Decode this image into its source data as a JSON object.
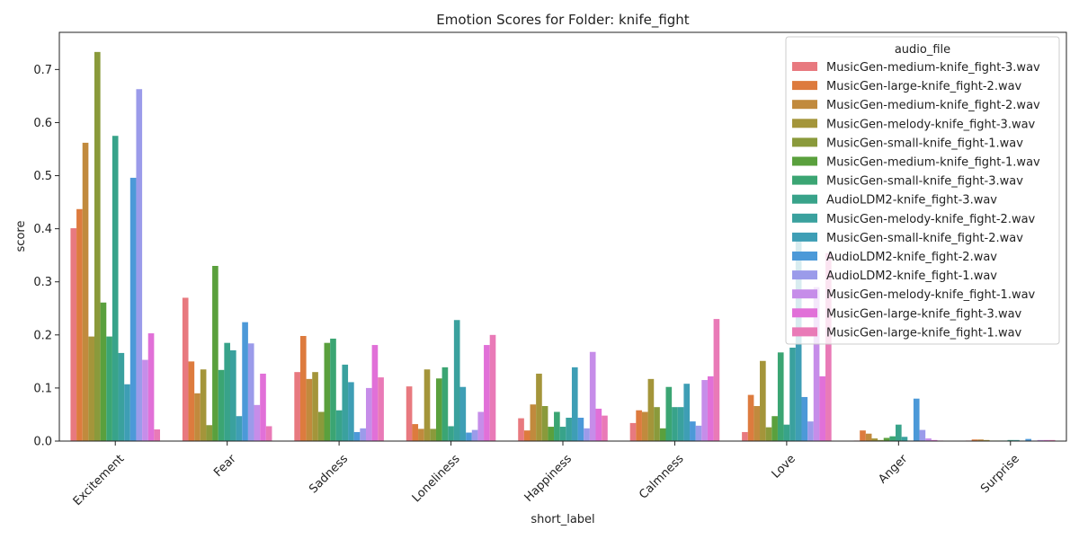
{
  "chart_data": {
    "type": "bar",
    "title": "Emotion Scores for Folder: knife_fight",
    "xlabel": "short_label",
    "ylabel": "score",
    "ylim": [
      0,
      0.77
    ],
    "yticks": [
      "0.0",
      "0.1",
      "0.2",
      "0.3",
      "0.4",
      "0.5",
      "0.6",
      "0.7"
    ],
    "grid": false,
    "legend": {
      "title": "audio_file",
      "placement": "top-right"
    },
    "categories": [
      "Excitement",
      "Fear",
      "Sadness",
      "Loneliness",
      "Happiness",
      "Calmness",
      "Love",
      "Anger",
      "Surprise"
    ],
    "series": [
      {
        "name": "MusicGen-medium-knife_fight-3.wav",
        "color": "#e8797f",
        "values": [
          0.401,
          0.27,
          0.13,
          0.103,
          0.043,
          0.034,
          0.017,
          0.001,
          0.001
        ]
      },
      {
        "name": "MusicGen-large-knife_fight-2.wav",
        "color": "#dd7b3e",
        "values": [
          0.437,
          0.15,
          0.198,
          0.032,
          0.02,
          0.058,
          0.087,
          0.02,
          0.003
        ]
      },
      {
        "name": "MusicGen-medium-knife_fight-2.wav",
        "color": "#c18a3d",
        "values": [
          0.562,
          0.09,
          0.117,
          0.023,
          0.069,
          0.055,
          0.066,
          0.014,
          0.003
        ]
      },
      {
        "name": "MusicGen-melody-knife_fight-3.wav",
        "color": "#a4953a",
        "values": [
          0.197,
          0.135,
          0.13,
          0.135,
          0.127,
          0.117,
          0.151,
          0.005,
          0.002
        ]
      },
      {
        "name": "MusicGen-small-knife_fight-1.wav",
        "color": "#8a9a3b",
        "values": [
          0.733,
          0.03,
          0.055,
          0.023,
          0.066,
          0.064,
          0.026,
          0.002,
          0.001
        ]
      },
      {
        "name": "MusicGen-medium-knife_fight-1.wav",
        "color": "#5aa03d",
        "values": [
          0.261,
          0.33,
          0.185,
          0.118,
          0.027,
          0.024,
          0.047,
          0.006,
          0.001
        ]
      },
      {
        "name": "MusicGen-small-knife_fight-3.wav",
        "color": "#3ba573",
        "values": [
          0.197,
          0.134,
          0.193,
          0.139,
          0.055,
          0.102,
          0.167,
          0.009,
          0.001
        ]
      },
      {
        "name": "AudioLDM2-knife_fight-3.wav",
        "color": "#38a38a",
        "values": [
          0.575,
          0.185,
          0.058,
          0.028,
          0.027,
          0.064,
          0.031,
          0.031,
          0.002
        ]
      },
      {
        "name": "MusicGen-melody-knife_fight-2.wav",
        "color": "#3aa19e",
        "values": [
          0.166,
          0.171,
          0.144,
          0.228,
          0.044,
          0.064,
          0.176,
          0.008,
          0.002
        ]
      },
      {
        "name": "MusicGen-small-knife_fight-2.wav",
        "color": "#3e9eb5",
        "values": [
          0.107,
          0.047,
          0.111,
          0.102,
          0.139,
          0.108,
          0.377,
          0.001,
          0.001
        ]
      },
      {
        "name": "AudioLDM2-knife_fight-2.wav",
        "color": "#4c99d8",
        "values": [
          0.496,
          0.224,
          0.017,
          0.016,
          0.044,
          0.037,
          0.083,
          0.08,
          0.004
        ]
      },
      {
        "name": "AudioLDM2-knife_fight-1.wav",
        "color": "#9b9bea",
        "values": [
          0.663,
          0.184,
          0.024,
          0.021,
          0.024,
          0.029,
          0.037,
          0.021,
          0.001
        ]
      },
      {
        "name": "MusicGen-melody-knife_fight-1.wav",
        "color": "#c68de9",
        "values": [
          0.153,
          0.068,
          0.1,
          0.055,
          0.168,
          0.115,
          0.29,
          0.005,
          0.002
        ]
      },
      {
        "name": "MusicGen-large-knife_fight-3.wav",
        "color": "#e170d8",
        "values": [
          0.203,
          0.127,
          0.181,
          0.181,
          0.061,
          0.122,
          0.122,
          0.002,
          0.002
        ]
      },
      {
        "name": "MusicGen-large-knife_fight-1.wav",
        "color": "#e97ab7",
        "values": [
          0.022,
          0.028,
          0.12,
          0.2,
          0.048,
          0.23,
          0.354,
          0.001,
          0.002
        ]
      }
    ]
  }
}
